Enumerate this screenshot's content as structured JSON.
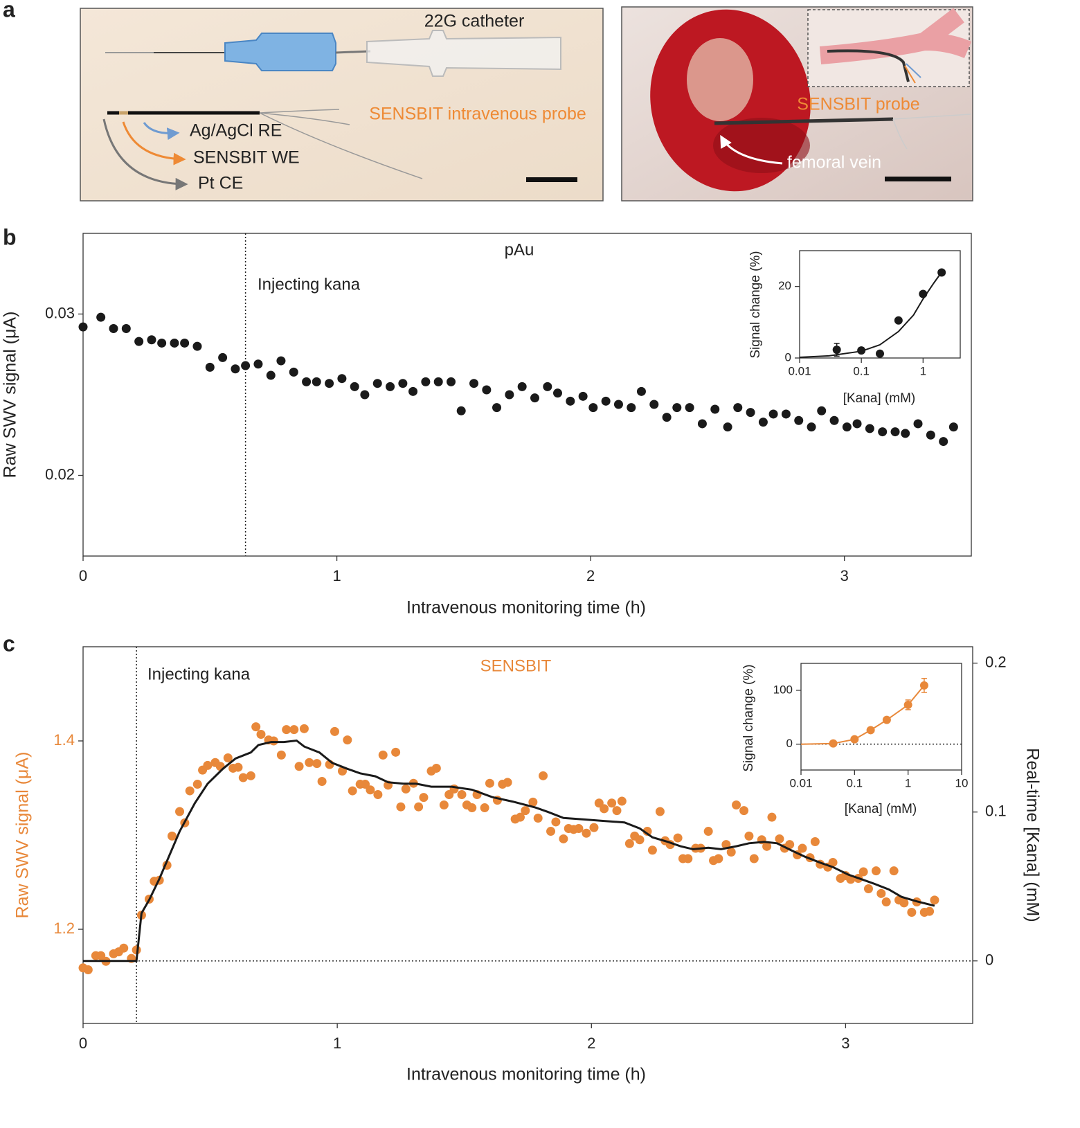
{
  "panel_a": {
    "label": "a",
    "left": {
      "catheter": "22G catheter",
      "probe": "SENSBIT intravenous probe",
      "re": "Ag/AgCl RE",
      "we": "SENSBIT WE",
      "ce": "Pt CE"
    },
    "right": {
      "probe": "SENSBIT probe",
      "vein": "femoral vein"
    }
  },
  "chart_data": [
    {
      "type": "scatter",
      "label": "b",
      "title": "pAu",
      "annotation": "Injecting kana",
      "event_x": 0.64,
      "xlabel": "Intravenous monitoring time (h)",
      "ylabel": "Raw SWV signal (μA)",
      "xlim": [
        0,
        3.5
      ],
      "xticks": [
        0,
        1,
        2,
        3
      ],
      "ylim": [
        0.015,
        0.035
      ],
      "yticks": [
        0.02,
        0.03
      ],
      "series": [
        {
          "color": "#1a1a1a",
          "mode": "markers",
          "x": [
            0,
            0.07,
            0.12,
            0.17,
            0.22,
            0.27,
            0.31,
            0.36,
            0.4,
            0.45,
            0.5,
            0.55,
            0.6,
            0.64,
            0.69,
            0.74,
            0.78,
            0.83,
            0.88,
            0.92,
            0.97,
            1.02,
            1.07,
            1.11,
            1.16,
            1.21,
            1.26,
            1.3,
            1.35,
            1.4,
            1.45,
            1.49,
            1.54,
            1.59,
            1.63,
            1.68,
            1.73,
            1.78,
            1.83,
            1.87,
            1.92,
            1.97,
            2.01,
            2.06,
            2.11,
            2.16,
            2.2,
            2.25,
            2.3,
            2.34,
            2.39,
            2.44,
            2.49,
            2.54,
            2.58,
            2.63,
            2.68,
            2.72,
            2.77,
            2.82,
            2.87,
            2.91,
            2.96,
            3.01,
            3.05,
            3.1,
            3.15,
            3.2,
            3.24,
            3.29,
            3.34,
            3.39,
            3.43
          ],
          "values": [
            0.0292,
            0.0298,
            0.0291,
            0.0291,
            0.0283,
            0.0284,
            0.0282,
            0.0282,
            0.0282,
            0.028,
            0.0267,
            0.0273,
            0.0266,
            0.0268,
            0.0269,
            0.0262,
            0.0271,
            0.0264,
            0.0258,
            0.0258,
            0.0257,
            0.026,
            0.0255,
            0.025,
            0.0257,
            0.0255,
            0.0257,
            0.0252,
            0.0258,
            0.0258,
            0.0258,
            0.024,
            0.0257,
            0.0253,
            0.0242,
            0.025,
            0.0255,
            0.0248,
            0.0255,
            0.0251,
            0.0246,
            0.0249,
            0.0242,
            0.0246,
            0.0244,
            0.0242,
            0.0252,
            0.0244,
            0.0236,
            0.0242,
            0.0242,
            0.0232,
            0.0241,
            0.023,
            0.0242,
            0.0239,
            0.0233,
            0.0238,
            0.0238,
            0.0234,
            0.023,
            0.024,
            0.0234,
            0.023,
            0.0232,
            0.0229,
            0.0227,
            0.0227,
            0.0226,
            0.0232,
            0.0225,
            0.0221,
            0.023
          ]
        }
      ]
    },
    {
      "type": "scatter",
      "xlog": true,
      "xlabel": "[Kana] (mM)",
      "ylabel": "Signal change (%)",
      "xlim": [
        0.01,
        4
      ],
      "xticks": [
        0.01,
        0.1,
        1
      ],
      "ylim": [
        0,
        30
      ],
      "yticks": [
        0,
        20
      ],
      "series": [
        {
          "color": "#1a1a1a",
          "mode": "line",
          "x": [
            0.01,
            0.03,
            0.1,
            0.2,
            0.4,
            0.7,
            1,
            1.5,
            2
          ],
          "values": [
            0.2,
            0.6,
            1.9,
            3.7,
            7.4,
            12,
            16.5,
            21,
            24
          ]
        },
        {
          "color": "#1a1a1a",
          "mode": "markers",
          "x": [
            0.04,
            0.1,
            0.2,
            0.4,
            1,
            2
          ],
          "values": [
            2.3,
            2.1,
            1.2,
            10.5,
            17.9,
            23.9
          ],
          "errors": [
            1.8,
            0.5,
            0.5,
            0.6,
            0.6,
            0.6
          ]
        }
      ]
    },
    {
      "type": "scatter",
      "label": "c",
      "title": "SENSBIT",
      "title_color": "#e8883a",
      "annotation": "Injecting kana",
      "event_x": 0.21,
      "xlabel": "Intravenous monitoring time (h)",
      "ylabel": "Raw SWV signal (μA)",
      "ylabel_color": "#e8883a",
      "y2label": "Real-time [Kana] (mM)",
      "hline": {
        "axis": "y2",
        "value": 0
      },
      "xlim": [
        0,
        3.5
      ],
      "xticks": [
        0,
        1,
        2,
        3
      ],
      "ylim": [
        1.1,
        1.5
      ],
      "yticks": [
        1.2,
        1.4
      ],
      "ytick_color": "#e8883a",
      "y2lim": [
        -0.042,
        0.211
      ],
      "y2ticks": [
        0,
        0.1,
        0.2
      ],
      "series": [
        {
          "color": "#e8883a",
          "mode": "markers",
          "x": [
            0,
            0.02,
            0.05,
            0.07,
            0.09,
            0.12,
            0.14,
            0.16,
            0.19,
            0.21,
            0.23,
            0.26,
            0.28,
            0.3,
            0.33,
            0.35,
            0.38,
            0.4,
            0.42,
            0.45,
            0.47,
            0.49,
            0.52,
            0.54,
            0.57,
            0.59,
            0.61,
            0.63,
            0.66,
            0.68,
            0.7,
            0.73,
            0.75,
            0.78,
            0.8,
            0.83,
            0.85,
            0.87,
            0.89,
            0.92,
            0.94,
            0.97,
            0.99,
            1.02,
            1.04,
            1.06,
            1.09,
            1.11,
            1.13,
            1.16,
            1.18,
            1.2,
            1.23,
            1.25,
            1.27,
            1.3,
            1.32,
            1.34,
            1.37,
            1.39,
            1.42,
            1.44,
            1.46,
            1.49,
            1.51,
            1.53,
            1.55,
            1.58,
            1.6,
            1.63,
            1.65,
            1.67,
            1.7,
            1.72,
            1.74,
            1.77,
            1.79,
            1.81,
            1.84,
            1.86,
            1.89,
            1.91,
            1.93,
            1.95,
            1.98,
            2.01,
            2.03,
            2.05,
            2.08,
            2.1,
            2.12,
            2.15,
            2.17,
            2.19,
            2.22,
            2.24,
            2.27,
            2.29,
            2.31,
            2.34,
            2.36,
            2.38,
            2.41,
            2.43,
            2.46,
            2.48,
            2.5,
            2.53,
            2.55,
            2.57,
            2.6,
            2.62,
            2.64,
            2.67,
            2.69,
            2.71,
            2.74,
            2.76,
            2.78,
            2.81,
            2.83,
            2.86,
            2.88,
            2.9,
            2.93,
            2.95,
            2.98,
            3,
            3.02,
            3.05,
            3.07,
            3.09,
            3.12,
            3.14,
            3.16,
            3.19,
            3.21,
            3.23,
            3.26,
            3.28,
            3.31,
            3.33,
            3.35
          ],
          "values": [
            1.159,
            1.157,
            1.172,
            1.172,
            1.166,
            1.174,
            1.176,
            1.18,
            1.169,
            1.178,
            1.215,
            1.232,
            1.251,
            1.252,
            1.268,
            1.299,
            1.325,
            1.313,
            1.347,
            1.354,
            1.369,
            1.374,
            1.377,
            1.373,
            1.382,
            1.371,
            1.372,
            1.361,
            1.363,
            1.415,
            1.407,
            1.401,
            1.4,
            1.385,
            1.412,
            1.412,
            1.373,
            1.413,
            1.377,
            1.376,
            1.357,
            1.375,
            1.41,
            1.368,
            1.401,
            1.347,
            1.354,
            1.354,
            1.348,
            1.343,
            1.385,
            1.353,
            1.388,
            1.33,
            1.349,
            1.355,
            1.33,
            1.34,
            1.368,
            1.371,
            1.332,
            1.343,
            1.349,
            1.343,
            1.332,
            1.329,
            1.343,
            1.329,
            1.355,
            1.337,
            1.354,
            1.356,
            1.317,
            1.319,
            1.326,
            1.335,
            1.318,
            1.363,
            1.304,
            1.314,
            1.296,
            1.307,
            1.306,
            1.307,
            1.302,
            1.308,
            1.334,
            1.328,
            1.334,
            1.326,
            1.336,
            1.291,
            1.299,
            1.295,
            1.304,
            1.284,
            1.325,
            1.294,
            1.29,
            1.297,
            1.275,
            1.275,
            1.286,
            1.286,
            1.304,
            1.273,
            1.275,
            1.29,
            1.282,
            1.332,
            1.326,
            1.299,
            1.275,
            1.295,
            1.288,
            1.319,
            1.296,
            1.286,
            1.29,
            1.279,
            1.286,
            1.276,
            1.293,
            1.269,
            1.266,
            1.271,
            1.254,
            1.257,
            1.253,
            1.254,
            1.261,
            1.243,
            1.262,
            1.238,
            1.229,
            1.262,
            1.231,
            1.228,
            1.218,
            1.229,
            1.218,
            1.219,
            1.231
          ]
        },
        {
          "color": "#1a1a1a",
          "mode": "line",
          "axis": "y2",
          "x": [
            0,
            0.21,
            0.23,
            0.26,
            0.3,
            0.34,
            0.38,
            0.44,
            0.49,
            0.55,
            0.6,
            0.66,
            0.69,
            0.74,
            0.79,
            0.84,
            0.87,
            0.93,
            0.98,
            1.04,
            1.09,
            1.15,
            1.2,
            1.26,
            1.31,
            1.37,
            1.45,
            1.53,
            1.61,
            1.69,
            1.78,
            1.83,
            1.89,
            1.97,
            2.05,
            2.13,
            2.19,
            2.24,
            2.3,
            2.35,
            2.4,
            2.46,
            2.51,
            2.57,
            2.62,
            2.68,
            2.73,
            2.79,
            2.84,
            2.9,
            2.95,
            3.01,
            3.06,
            3.11,
            3.17,
            3.22,
            3.28,
            3.35
          ],
          "values": [
            0,
            0,
            0.032,
            0.041,
            0.055,
            0.071,
            0.087,
            0.106,
            0.119,
            0.129,
            0.136,
            0.14,
            0.145,
            0.147,
            0.147,
            0.148,
            0.144,
            0.14,
            0.133,
            0.129,
            0.126,
            0.124,
            0.12,
            0.119,
            0.119,
            0.117,
            0.117,
            0.115,
            0.11,
            0.107,
            0.103,
            0.1,
            0.096,
            0.095,
            0.094,
            0.093,
            0.089,
            0.083,
            0.08,
            0.077,
            0.075,
            0.076,
            0.075,
            0.077,
            0.079,
            0.08,
            0.079,
            0.074,
            0.07,
            0.066,
            0.063,
            0.058,
            0.055,
            0.052,
            0.048,
            0.043,
            0.04,
            0.037
          ]
        }
      ]
    },
    {
      "type": "scatter",
      "xlog": true,
      "xlabel": "[Kana] (mM)",
      "ylabel": "Signal change (%)",
      "hline": {
        "axis": "y",
        "value": 0
      },
      "xlim": [
        0.01,
        10
      ],
      "xticks": [
        0.01,
        0.1,
        1,
        10
      ],
      "ylim": [
        -48,
        150
      ],
      "yticks": [
        0,
        100
      ],
      "series": [
        {
          "color": "#e8883a",
          "mode": "line",
          "x": [
            0.01,
            0.04,
            0.1,
            0.2,
            0.4,
            1,
            2
          ],
          "values": [
            0,
            1.3,
            9,
            26,
            45,
            73,
            109
          ]
        },
        {
          "color": "#e8883a",
          "mode": "markers",
          "x": [
            0.04,
            0.1,
            0.2,
            0.4,
            1,
            2
          ],
          "values": [
            1.3,
            9,
            26,
            45,
            73,
            109
          ],
          "errors": [
            3,
            3,
            3,
            3,
            9,
            13
          ]
        }
      ]
    }
  ]
}
